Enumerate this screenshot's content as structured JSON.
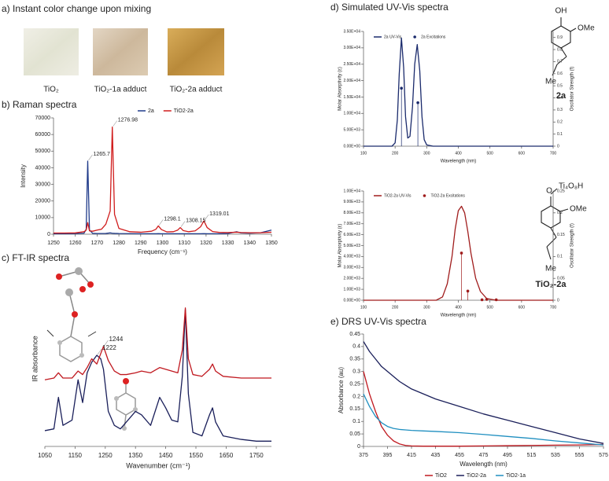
{
  "panel_a": {
    "title": "a) Instant color change upon mixing",
    "samples": [
      "TiO₂",
      "TiO₂-1a adduct",
      "TiO₂-2a adduct"
    ]
  },
  "chart_data": [
    {
      "type": "line",
      "title": "b) Raman spectra",
      "x_label": "Frequency (cm⁻¹)",
      "y_label": "Intensity",
      "xlim": [
        1250,
        1350
      ],
      "xticks": [
        1250,
        1260,
        1270,
        1280,
        1290,
        1300,
        1310,
        1320,
        1330,
        1340,
        1350
      ],
      "ylim": [
        0,
        70000
      ],
      "yticks": [
        0,
        10000,
        20000,
        30000,
        40000,
        50000,
        60000,
        70000
      ],
      "legend": "top",
      "x": [
        1250,
        1255,
        1260,
        1264,
        1265,
        1265.7,
        1266.5,
        1268,
        1270,
        1272,
        1274,
        1276,
        1276.98,
        1278,
        1280,
        1285,
        1290,
        1295,
        1297,
        1298.1,
        1299.5,
        1302,
        1305,
        1307,
        1308.15,
        1309.5,
        1312,
        1315,
        1317.5,
        1319.01,
        1320.5,
        1323,
        1326,
        1330,
        1334,
        1336,
        1340,
        1345,
        1350
      ],
      "series": [
        {
          "name": "2a",
          "color": "#1f3a8a",
          "values": [
            300,
            300,
            350,
            600,
            3000,
            44000,
            2500,
            500,
            400,
            400,
            450,
            800,
            600,
            500,
            400,
            350,
            300,
            300,
            300,
            350,
            300,
            300,
            300,
            300,
            300,
            300,
            300,
            300,
            300,
            350,
            300,
            300,
            300,
            400,
            1500,
            800,
            600,
            900,
            2500
          ]
        },
        {
          "name": "TiO2-2a",
          "color": "#d01c1c",
          "values": [
            700,
            700,
            800,
            1500,
            2500,
            7000,
            2000,
            1800,
            2500,
            3000,
            6000,
            14000,
            64500,
            12000,
            3500,
            1500,
            1200,
            1800,
            3000,
            5000,
            2800,
            1400,
            1500,
            2500,
            4000,
            2200,
            1500,
            2000,
            4500,
            8000,
            4000,
            1600,
            1100,
            1000,
            1200,
            1000,
            900,
            900,
            1200
          ]
        }
      ],
      "annotations": [
        {
          "text": "1265.7",
          "x": 1265.7
        },
        {
          "text": "1276.98",
          "x": 1276.98
        },
        {
          "text": "1298.1",
          "x": 1298.1
        },
        {
          "text": "1308.15",
          "x": 1308.15
        },
        {
          "text": "1319.01",
          "x": 1319.01
        }
      ]
    },
    {
      "type": "line",
      "title": "c) FT-IR spectra",
      "x_label": "Wavenumber (cm⁻¹)",
      "y_label": "IR absorbance",
      "xlim": [
        1050,
        1800
      ],
      "xticks": [
        1050,
        1150,
        1250,
        1350,
        1450,
        1550,
        1650,
        1750
      ],
      "ylim": [
        0,
        100
      ],
      "x": [
        1050,
        1080,
        1095,
        1110,
        1140,
        1160,
        1175,
        1190,
        1205,
        1222,
        1235,
        1244,
        1260,
        1280,
        1300,
        1320,
        1350,
        1370,
        1400,
        1430,
        1450,
        1470,
        1490,
        1505,
        1515,
        1525,
        1540,
        1570,
        1595,
        1605,
        1615,
        1640,
        1700,
        1750,
        1800
      ],
      "series": [
        {
          "color": "#1a1f5a",
          "values": [
            9,
            10,
            28,
            12,
            15,
            38,
            25,
            42,
            48,
            52,
            50,
            44,
            20,
            12,
            10,
            14,
            20,
            18,
            12,
            28,
            22,
            15,
            14,
            40,
            78,
            30,
            8,
            6,
            18,
            22,
            14,
            6,
            4,
            3,
            3
          ]
        },
        {
          "color": "#c0181f",
          "values": [
            38,
            39,
            42,
            39,
            39,
            43,
            41,
            45,
            50,
            47,
            53,
            57,
            49,
            43,
            41,
            41,
            42,
            43,
            42,
            45,
            44,
            43,
            42,
            55,
            79,
            50,
            41,
            40,
            44,
            47,
            43,
            40,
            39,
            39,
            39
          ]
        }
      ],
      "annotations": [
        {
          "text": "1244",
          "x": 1244
        },
        {
          "text": "1222",
          "x": 1222
        }
      ]
    },
    {
      "type": "line",
      "title": "d) Simulated UV-Vis spectra",
      "x_label": "Wavelength (nm)",
      "y_label": "Molar Absorptivity (ε)",
      "y2_label": "Oscillator Strength (f)",
      "xlim": [
        100,
        700
      ],
      "xticks": [
        100,
        200,
        300,
        400,
        500,
        600,
        700
      ],
      "ylim": [
        0,
        35000
      ],
      "yticks": [
        {
          "value": 0,
          "label": "0.00E+00"
        },
        {
          "value": 5000,
          "label": "5.00E+03"
        },
        {
          "value": 10000,
          "label": "1.00E+04"
        },
        {
          "value": 15000,
          "label": "1.50E+04"
        },
        {
          "value": 20000,
          "label": "2.00E+04"
        },
        {
          "value": 25000,
          "label": "2.50E+04"
        },
        {
          "value": 30000,
          "label": "3.00E+04"
        },
        {
          "value": 35000,
          "label": "3.50E+04"
        }
      ],
      "y2lim": [
        0,
        0.95
      ],
      "y2ticks": [
        0,
        0.1,
        0.2,
        0.3,
        0.4,
        0.5,
        0.6,
        0.7,
        0.8,
        0.9
      ],
      "legend": "top-left",
      "series": [
        {
          "name": "2a UV-Vis",
          "color": "#1a2a6c",
          "x": [
            100,
            190,
            200,
            207,
            213,
            220,
            227,
            233,
            240,
            247,
            255,
            262,
            270,
            278,
            285,
            292,
            300,
            320,
            400,
            700
          ],
          "values": [
            0,
            0,
            1000,
            8000,
            22000,
            33000,
            24000,
            9000,
            2500,
            3000,
            12000,
            25000,
            31000,
            23000,
            9000,
            2000,
            400,
            0,
            0,
            0
          ]
        },
        {
          "name": "2a Excitations",
          "color": "#1a2a6c",
          "mode": "markers",
          "axis": "y2",
          "x": [
            220,
            272
          ],
          "values": [
            0.48,
            0.36
          ]
        }
      ],
      "structure_labels": [
        "OH",
        "OMe",
        "Me",
        "2a"
      ]
    },
    {
      "type": "line",
      "x_label": "Wavelength (nm)",
      "y_label": "Molar Absorptivity (ε)",
      "y2_label": "Oscillator Strength (f)",
      "xlim": [
        100,
        700
      ],
      "xticks": [
        100,
        200,
        300,
        400,
        500,
        600,
        700
      ],
      "ylim": [
        0,
        10000
      ],
      "yticks": [
        {
          "value": 0,
          "label": "0.00E+00"
        },
        {
          "value": 1000,
          "label": "1.00E+03"
        },
        {
          "value": 2000,
          "label": "2.00E+03"
        },
        {
          "value": 3000,
          "label": "3.00E+03"
        },
        {
          "value": 4000,
          "label": "4.00E+03"
        },
        {
          "value": 5000,
          "label": "5.00E+03"
        },
        {
          "value": 6000,
          "label": "6.00E+03"
        },
        {
          "value": 7000,
          "label": "7.00E+03"
        },
        {
          "value": 8000,
          "label": "8.00E+03"
        },
        {
          "value": 9000,
          "label": "9.00E+03"
        },
        {
          "value": 10000,
          "label": "1.00E+04"
        }
      ],
      "y2lim": [
        0,
        0.25
      ],
      "y2ticks": [
        0,
        0.05,
        0.1,
        0.15,
        0.2,
        0.25
      ],
      "legend": "top-left",
      "series": [
        {
          "name": "TiO2-2a UV-Vis",
          "color": "#a01c1c",
          "x": [
            100,
            330,
            350,
            365,
            380,
            390,
            400,
            410,
            420,
            430,
            440,
            455,
            470,
            490,
            520,
            700
          ],
          "values": [
            0,
            0,
            300,
            1500,
            4000,
            6500,
            8200,
            8600,
            8000,
            6300,
            4300,
            2000,
            800,
            150,
            0,
            0
          ]
        },
        {
          "name": "TiO2-2a Excitations",
          "color": "#a01c1c",
          "mode": "markers",
          "axis": "y2",
          "x": [
            410,
            430,
            475,
            490,
            520
          ],
          "values": [
            0.108,
            0.021,
            0.001,
            0.002,
            0.001
          ]
        }
      ],
      "structure_labels": [
        "O",
        "Ti₄O₈H",
        "OMe",
        "Me",
        "TiO₂-2a"
      ]
    },
    {
      "type": "line",
      "title": "e) DRS UV-Vis spectra",
      "x_label": "Wavelength (nm)",
      "y_label": "Absorbance (au)",
      "xlim": [
        375,
        575
      ],
      "xticks": [
        375,
        395,
        415,
        435,
        455,
        475,
        495,
        515,
        535,
        555,
        575
      ],
      "ylim": [
        0,
        0.45
      ],
      "yticks": [
        0,
        0.05,
        0.1,
        0.15,
        0.2,
        0.25,
        0.3,
        0.35,
        0.4,
        0.45
      ],
      "legend": "bottom",
      "x": [
        375,
        380,
        385,
        390,
        395,
        400,
        405,
        410,
        415,
        425,
        435,
        455,
        475,
        495,
        515,
        535,
        555,
        575
      ],
      "series": [
        {
          "name": "TiO2",
          "color": "#c0181f",
          "values": [
            0.3,
            0.21,
            0.14,
            0.08,
            0.045,
            0.022,
            0.01,
            0.004,
            0.002,
            0.001,
            0.001,
            0.001,
            0.002,
            0.003,
            0.004,
            0.005,
            0.006,
            0.008
          ]
        },
        {
          "name": "TiO2-2a",
          "color": "#1a1f5a",
          "values": [
            0.42,
            0.38,
            0.35,
            0.32,
            0.3,
            0.28,
            0.26,
            0.245,
            0.23,
            0.21,
            0.19,
            0.16,
            0.13,
            0.105,
            0.08,
            0.055,
            0.03,
            0.012
          ]
        },
        {
          "name": "TiO2-1a",
          "color": "#1f8fc0",
          "values": [
            0.21,
            0.16,
            0.12,
            0.095,
            0.08,
            0.072,
            0.068,
            0.066,
            0.064,
            0.062,
            0.06,
            0.055,
            0.048,
            0.04,
            0.032,
            0.022,
            0.014,
            0.006
          ]
        }
      ]
    }
  ]
}
